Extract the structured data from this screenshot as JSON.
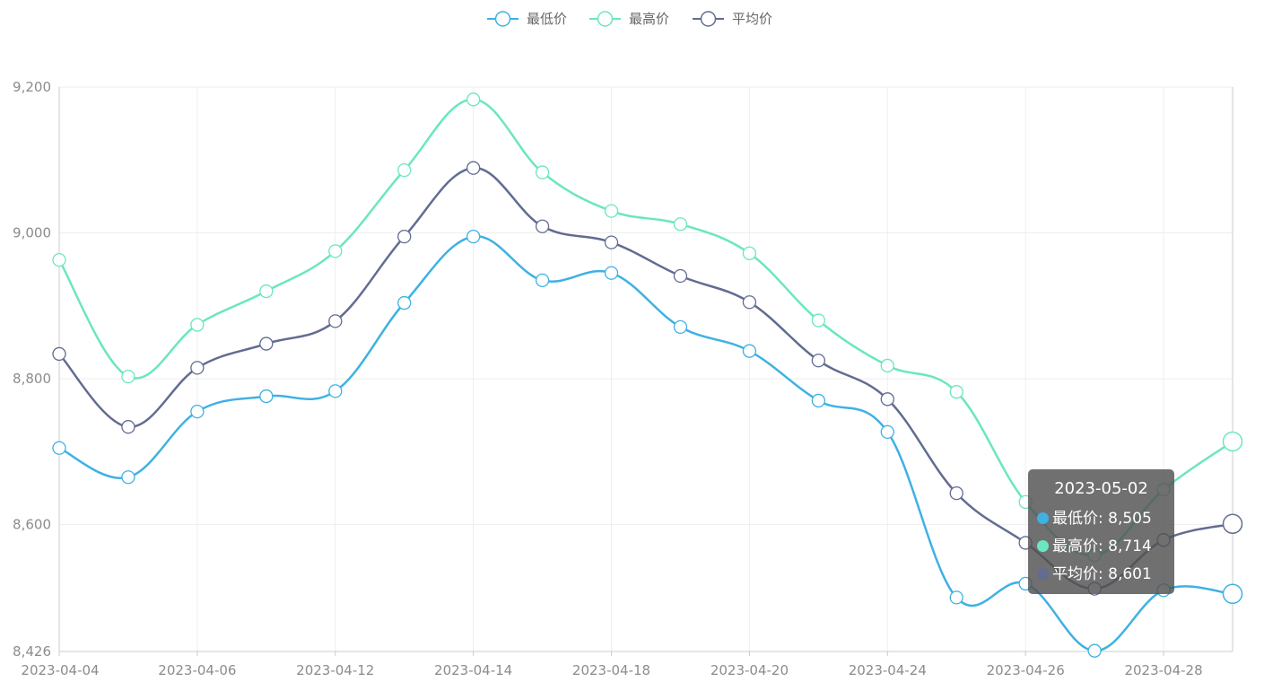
{
  "chart_data": {
    "type": "line",
    "smooth": true,
    "x": [
      "2023-04-04",
      "2023-04-05",
      "2023-04-06",
      "2023-04-08",
      "2023-04-12",
      "2023-04-13",
      "2023-04-14",
      "2023-04-16",
      "2023-04-18",
      "2023-04-19",
      "2023-04-20",
      "2023-04-22",
      "2023-04-24",
      "2023-04-25",
      "2023-04-26",
      "2023-04-27",
      "2023-04-28",
      "2023-05-02"
    ],
    "x_tick_labels": [
      "2023-04-04",
      "2023-04-06",
      "2023-04-12",
      "2023-04-14",
      "2023-04-18",
      "2023-04-20",
      "2023-04-24",
      "2023-04-26",
      "2023-04-28"
    ],
    "y_tick_labels": [
      "8,426",
      "8,600",
      "8,800",
      "9,000",
      "9,200"
    ],
    "ylim": [
      8426,
      9200
    ],
    "grid": true,
    "legend_position": "top-center",
    "series": [
      {
        "name": "最低价",
        "color": "#3fb1e3",
        "values": [
          8705,
          8665,
          8755,
          8776,
          8783,
          8904,
          8995,
          8935,
          8945,
          8871,
          8838,
          8770,
          8727,
          8500,
          8519,
          8427,
          8510,
          8505
        ]
      },
      {
        "name": "最高价",
        "color": "#6be6c1",
        "values": [
          8963,
          8803,
          8874,
          8920,
          8975,
          9086,
          9183,
          9083,
          9030,
          9012,
          8972,
          8880,
          8818,
          8782,
          8631,
          8558,
          8648,
          8714
        ]
      },
      {
        "name": "平均价",
        "color": "#626c91",
        "values": [
          8834,
          8734,
          8815,
          8848,
          8879,
          8995,
          9089,
          9009,
          8987,
          8941,
          8905,
          8825,
          8772,
          8643,
          8575,
          8512,
          8579,
          8601
        ]
      }
    ],
    "tooltip": {
      "title": "2023-05-02",
      "rows": [
        {
          "label": "最低价: 8,505",
          "color": "#3fb1e3"
        },
        {
          "label": "最高价: 8,714",
          "color": "#6be6c1"
        },
        {
          "label": "平均价: 8,601",
          "color": "#626c91"
        }
      ]
    }
  }
}
